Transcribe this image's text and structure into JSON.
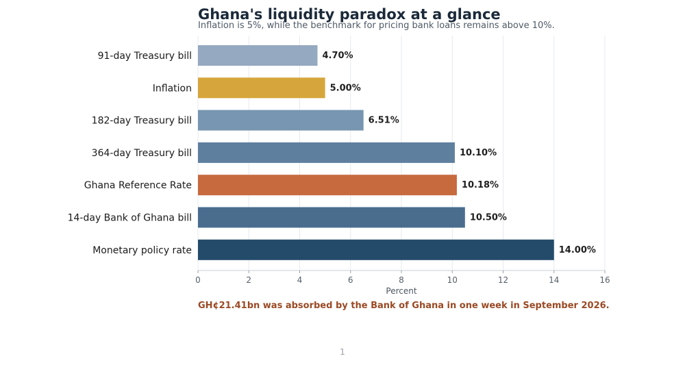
{
  "page": {
    "title": "Ghana's liquidity paradox at a glance",
    "subtitle": "Inflation is 5%, while the benchmark for pricing bank loans remains above 10%.",
    "note": "GH¢21.41bn was absorbed by the Bank of Ghana in one week in September 2026.",
    "page_number": "1"
  },
  "chart_data": {
    "type": "bar",
    "orientation": "horizontal",
    "title": "Ghana's liquidity paradox at a glance",
    "subtitle": "Inflation is 5%, while the benchmark for pricing bank loans remains above 10%.",
    "xlabel": "Percent",
    "ylabel": "",
    "xlim": [
      0,
      16
    ],
    "xticks": [
      0,
      2,
      4,
      6,
      8,
      10,
      12,
      14,
      16
    ],
    "grid": "vertical",
    "categories": [
      "91-day Treasury bill",
      "Inflation",
      "182-day Treasury bill",
      "364-day Treasury bill",
      "Ghana Reference Rate",
      "14-day Bank of Ghana bill",
      "Monetary policy rate"
    ],
    "values": [
      4.7,
      5.0,
      6.51,
      10.1,
      10.18,
      10.5,
      14.0
    ],
    "data_labels": [
      "4.70%",
      "5.00%",
      "6.51%",
      "10.10%",
      "10.18%",
      "10.50%",
      "14.00%"
    ],
    "colors": [
      "#95a9c0",
      "#d6a63c",
      "#7896b2",
      "#5f7f9e",
      "#c76a3e",
      "#4a6d8e",
      "#254b6b"
    ]
  }
}
